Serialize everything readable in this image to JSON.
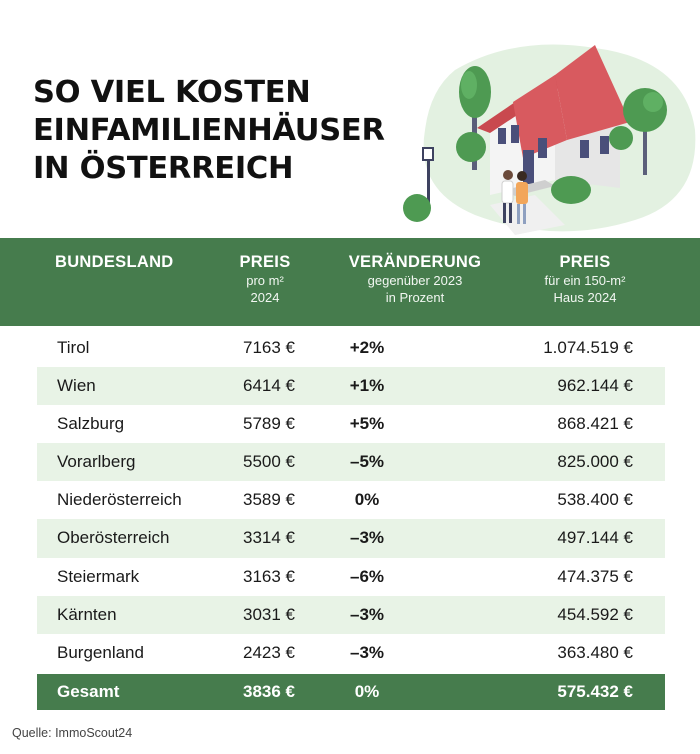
{
  "title": {
    "line1": "SO VIEL KOSTEN",
    "line2": "EINFAMILIENHÄUSER",
    "line3": "IN ÖSTERREICH"
  },
  "colors": {
    "header_green": "#467c4d",
    "row_alt": "#e8f3e6",
    "roof_red": "#d85a5f"
  },
  "chart_data": {
    "type": "table",
    "columns": [
      {
        "title": "BUNDESLAND",
        "sub": ""
      },
      {
        "title": "PREIS",
        "sub": "pro m²",
        "sub2": "2024"
      },
      {
        "title": "VERÄNDERUNG",
        "sub": "gegenüber 2023",
        "sub2": "in Prozent"
      },
      {
        "title": "PREIS",
        "sub": "für ein 150-m²",
        "sub2": "Haus 2024"
      }
    ],
    "rows": [
      {
        "region": "Tirol",
        "price_m2": "7163 €",
        "change": "+2%",
        "price_house": "1.074.519 €"
      },
      {
        "region": "Wien",
        "price_m2": "6414 €",
        "change": "+1%",
        "price_house": "962.144 €"
      },
      {
        "region": "Salzburg",
        "price_m2": "5789 €",
        "change": "+5%",
        "price_house": "868.421 €"
      },
      {
        "region": "Vorarlberg",
        "price_m2": "5500 €",
        "change": "–5%",
        "price_house": "825.000 €"
      },
      {
        "region": "Niederösterreich",
        "price_m2": "3589 €",
        "change": "0%",
        "price_house": "538.400 €"
      },
      {
        "region": "Oberösterreich",
        "price_m2": "3314 €",
        "change": "–3%",
        "price_house": "497.144 €"
      },
      {
        "region": "Steiermark",
        "price_m2": "3163 €",
        "change": "–6%",
        "price_house": "474.375 €"
      },
      {
        "region": "Kärnten",
        "price_m2": "3031 €",
        "change": "–3%",
        "price_house": "454.592 €"
      },
      {
        "region": "Burgenland",
        "price_m2": "2423 €",
        "change": "–3%",
        "price_house": "363.480 €"
      }
    ],
    "total": {
      "region": "Gesamt",
      "price_m2": "3836 €",
      "change": "0%",
      "price_house": "575.432 €"
    }
  },
  "source": "Quelle: ImmoScout24"
}
